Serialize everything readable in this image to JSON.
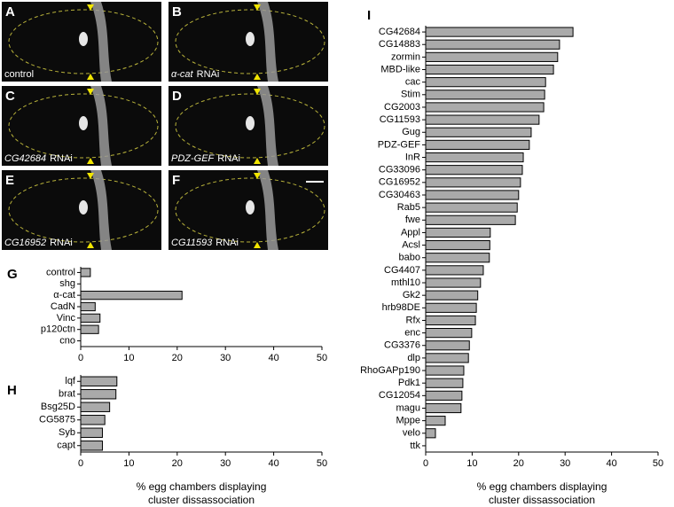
{
  "panels": [
    {
      "letter": "A",
      "caption": "control"
    },
    {
      "letter": "B",
      "gene": "α-cat",
      "suffix": "RNAi"
    },
    {
      "letter": "C",
      "gene": "CG42684",
      "suffix": "RNAi"
    },
    {
      "letter": "D",
      "gene": "PDZ-GEF",
      "suffix": "RNAi"
    },
    {
      "letter": "E",
      "gene": "CG16952",
      "suffix": "RNAi"
    },
    {
      "letter": "F",
      "gene": "CG11593",
      "suffix": "RNAi"
    }
  ],
  "chart_data": [
    {
      "type": "bar",
      "orientation": "horizontal",
      "label": "G",
      "color": "#aaaaaa",
      "categories": [
        "control",
        "shg",
        "α-cat",
        "CadN",
        "Vinc",
        "p120ctn",
        "cno"
      ],
      "values": [
        2,
        0,
        21,
        3,
        4,
        3.7,
        0
      ],
      "xlim": [
        0,
        50
      ],
      "xticks": [
        0,
        10,
        20,
        30,
        40,
        50
      ]
    },
    {
      "type": "bar",
      "orientation": "horizontal",
      "label": "H",
      "color": "#aaaaaa",
      "categories": [
        "lqf",
        "brat",
        "Bsg25D",
        "CG5875",
        "Syb",
        "capt"
      ],
      "values": [
        7.5,
        7.3,
        6,
        5,
        4.5,
        4.5
      ],
      "xlim": [
        0,
        50
      ],
      "xticks": [
        0,
        10,
        20,
        30,
        40,
        50
      ],
      "xlabel": [
        "% egg chambers displaying",
        "cluster dissassociation"
      ]
    },
    {
      "type": "bar",
      "orientation": "horizontal",
      "label": "I",
      "color": "#aaaaaa",
      "categories": [
        "CG42684",
        "CG14883",
        "zormin",
        "MBD-like",
        "cac",
        "Stim",
        "CG2003",
        "CG11593",
        "Gug",
        "PDZ-GEF",
        "InR",
        "CG33096",
        "CG16952",
        "CG30463",
        "Rab5",
        "fwe",
        "Appl",
        "Acsl",
        "babo",
        "CG4407",
        "mthl10",
        "Gk2",
        "hrb98DE",
        "Rfx",
        "enc",
        "CG3376",
        "dlp",
        "RhoGAPp190",
        "Pdk1",
        "CG12054",
        "magu",
        "Mppe",
        "velo",
        "ttk"
      ],
      "values": [
        31.7,
        28.8,
        28.4,
        27.5,
        25.8,
        25.6,
        25.4,
        24.4,
        22.7,
        22.3,
        21,
        20.8,
        20.4,
        20,
        19.7,
        19.3,
        13.9,
        13.8,
        13.7,
        12.4,
        11.8,
        11.2,
        10.9,
        10.7,
        9.9,
        9.4,
        9.2,
        8.2,
        8,
        7.8,
        7.6,
        4.2,
        2.1,
        0
      ],
      "xlim": [
        0,
        50
      ],
      "xticks": [
        0,
        10,
        20,
        30,
        40,
        50
      ],
      "xlabel": [
        "% egg chambers displaying",
        "cluster dissassociation"
      ]
    }
  ]
}
